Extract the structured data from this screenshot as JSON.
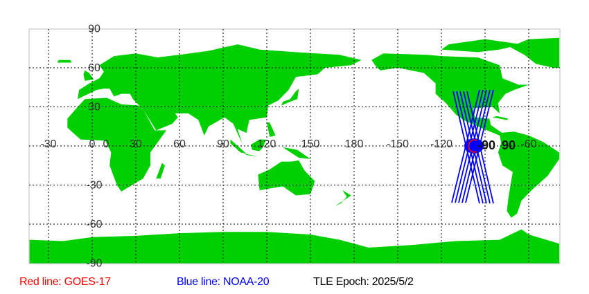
{
  "map": {
    "projection": "equirectangular",
    "center_longitude": 140,
    "land_color": "#00d000",
    "ocean_color": "#ffffff",
    "grid": true,
    "lon_labels": [
      "-30",
      "0",
      "30",
      "60",
      "90",
      "120",
      "150",
      "180",
      "-150",
      "-120",
      "-90",
      "-60"
    ],
    "lat_labels": [
      "90",
      "60",
      "30",
      "0",
      "-30",
      "-60",
      "-90"
    ],
    "lon_values": [
      -30,
      0,
      30,
      60,
      90,
      120,
      150,
      180,
      210,
      240,
      270,
      300
    ],
    "lat_values": [
      90,
      60,
      30,
      0,
      -30,
      -60,
      -90
    ],
    "overlap_label": "90",
    "tracks": [
      {
        "satellite": "NOAA-20",
        "color": "#0000ff"
      },
      {
        "satellite": "GOES-17",
        "color": "#ff0000"
      }
    ]
  },
  "legend": {
    "red": {
      "text": "Red line: GOES-17",
      "color": "#ff0000"
    },
    "blue": {
      "text": "Blue line: NOAA-20",
      "color": "#0000ff"
    },
    "epoch": {
      "text": "TLE Epoch: 2025/5/2",
      "color": "#000000"
    }
  }
}
